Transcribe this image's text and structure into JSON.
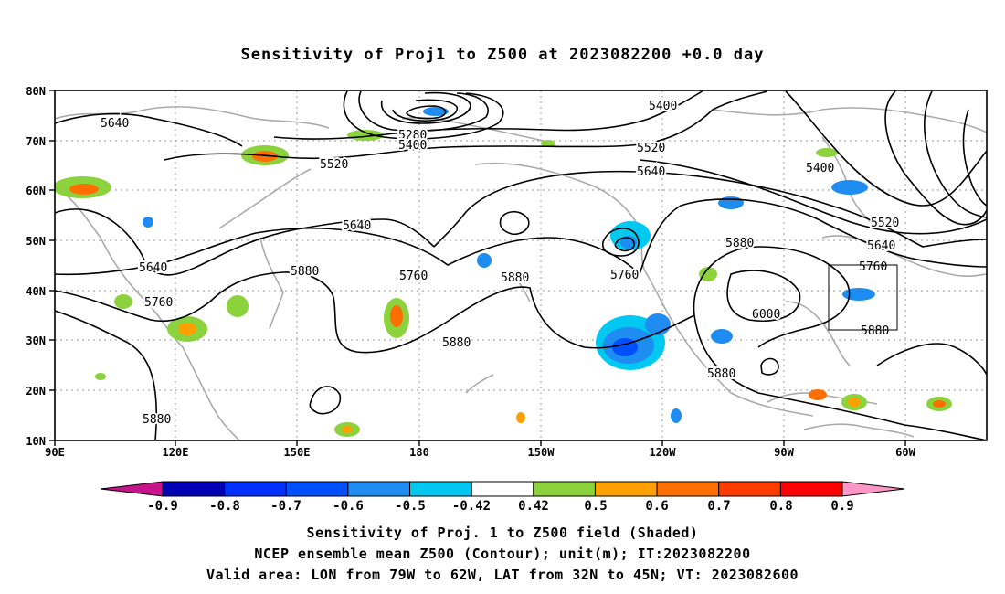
{
  "title": "Sensitivity of Proj1 to Z500 at 2023082200 +0.0 day",
  "map": {
    "lon_labels": [
      "90E",
      "120E",
      "150E",
      "180",
      "150W",
      "120W",
      "90W",
      "60W"
    ],
    "lat_labels": [
      "80N",
      "70N",
      "60N",
      "50N",
      "40N",
      "30N",
      "20N",
      "10N"
    ],
    "gridlines": true,
    "contour_labels": [
      "5640",
      "5280",
      "5400",
      "5520",
      "5400",
      "5520",
      "5640",
      "5400",
      "5640",
      "5520",
      "5640",
      "5880",
      "5760",
      "5640",
      "5760",
      "5880",
      "5760",
      "5880",
      "5760",
      "6000",
      "5880",
      "5880",
      "5880",
      "5880"
    ],
    "valid_area_lon": [
      -79,
      -62
    ],
    "valid_area_lat": [
      32,
      45
    ]
  },
  "colorbar": {
    "labels": [
      "-0.9",
      "-0.8",
      "-0.7",
      "-0.6",
      "-0.5",
      "-0.42",
      "0.42",
      "0.5",
      "0.6",
      "0.7",
      "0.8",
      "0.9"
    ],
    "colors": [
      "#0000b4",
      "#0030ff",
      "#0050ff",
      "#1e8cf0",
      "#00c8f0",
      "#ffffff",
      "#8cd23c",
      "#ffa000",
      "#ff6e00",
      "#ff3c00",
      "#ff0000"
    ],
    "low_extension_color": "#c8148c",
    "high_extension_color": "#ff96c8"
  },
  "footer": {
    "line1": "Sensitivity of Proj. 1 to Z500 field (Shaded)",
    "line2": "NCEP ensemble mean Z500 (Contour); unit(m); IT:2023082200",
    "line3": "Valid area: LON from 79W to 62W, LAT from 32N to 45N; VT: 2023082600"
  }
}
